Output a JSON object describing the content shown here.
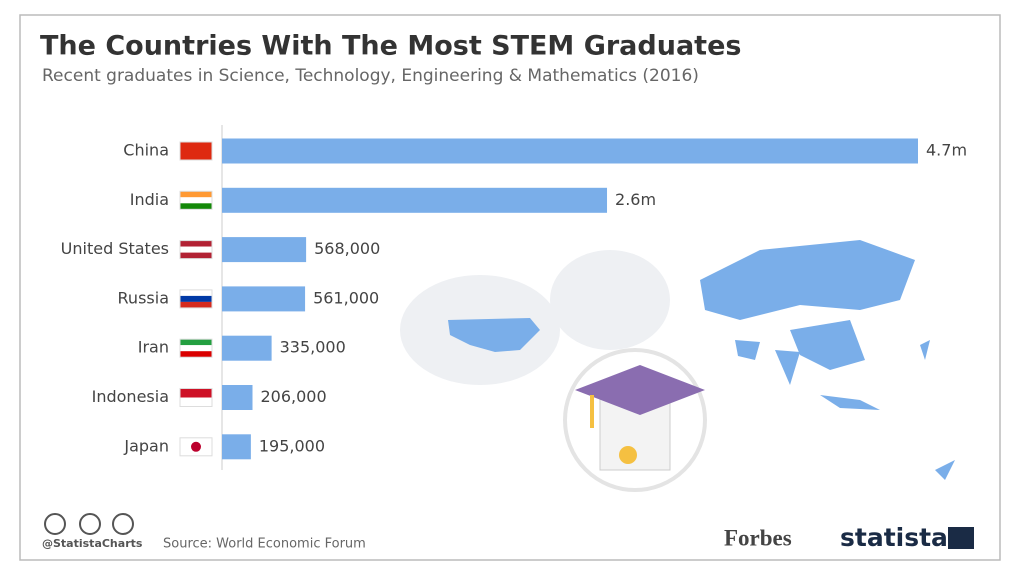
{
  "chart_data": {
    "type": "bar",
    "orientation": "horizontal",
    "title": "The Countries With The Most STEM Graduates",
    "subtitle": "Recent graduates in Science, Technology, Engineering & Mathematics (2016)",
    "categories": [
      "China",
      "India",
      "United States",
      "Russia",
      "Iran",
      "Indonesia",
      "Japan"
    ],
    "values": [
      4700000,
      2600000,
      568000,
      561000,
      335000,
      206000,
      195000
    ],
    "value_labels": [
      "4.7m",
      "2.6m",
      "568,000",
      "561,000",
      "335,000",
      "206,000",
      "195,000"
    ],
    "color": "#7aaee9",
    "credit": "@StatistaCharts",
    "source": "Source: World Economic Forum",
    "publisher": "Forbes",
    "brand": "statista"
  }
}
